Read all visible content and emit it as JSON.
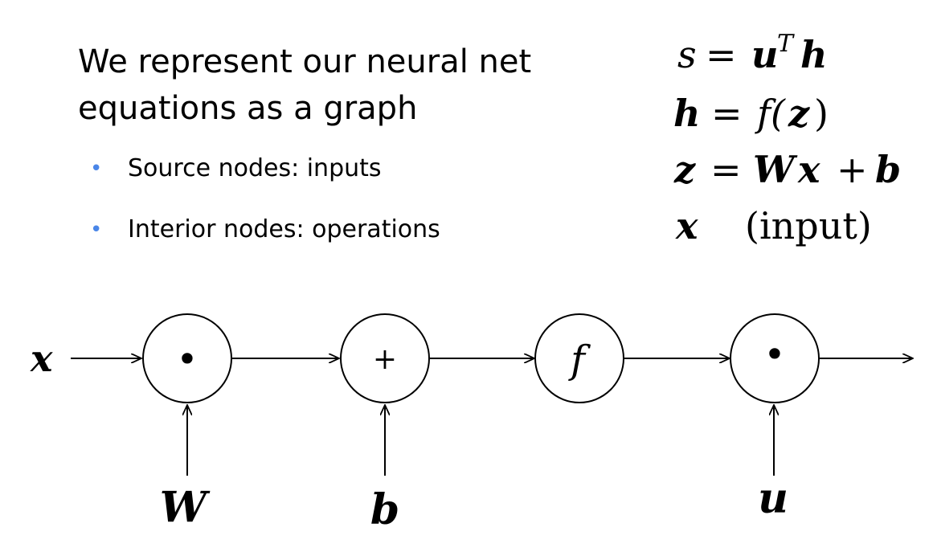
{
  "title": {
    "line1": "We represent our neural net",
    "line2": "equations as a graph"
  },
  "bullets": [
    "Source nodes: inputs",
    "Interior nodes: operations"
  ],
  "equations": {
    "eq1": {
      "lhs": "s",
      "equals": "=",
      "rhs_base": "u",
      "rhs_sup": "T",
      "rhs_tail": "h"
    },
    "eq2": {
      "lhs": "h",
      "equals": "=",
      "rhs": "f(",
      "arg": "z",
      "close": ")"
    },
    "eq3": {
      "lhs": "z",
      "equals": "=",
      "rhs_w": "W",
      "rhs_x": "x",
      "plus": "+",
      "rhs_b": "b"
    },
    "eq4": {
      "var": "x",
      "note": "(input)"
    }
  },
  "graph": {
    "input_label": "x",
    "nodes": [
      {
        "id": "dot1",
        "symbol": "•",
        "side_input": "W"
      },
      {
        "id": "plus",
        "symbol": "+",
        "side_input": "b"
      },
      {
        "id": "f",
        "symbol": "f",
        "side_input": ""
      },
      {
        "id": "dot2",
        "symbol": "•",
        "side_input": "u"
      }
    ]
  }
}
